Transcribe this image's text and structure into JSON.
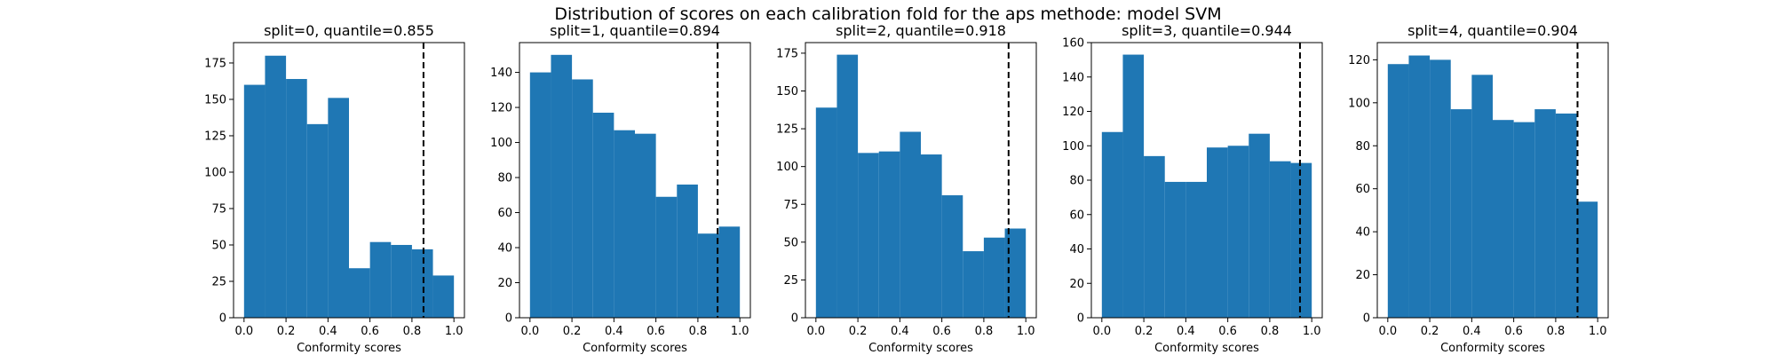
{
  "figure": {
    "suptitle": "Distribution of scores on each calibration fold for the aps methode: model SVM"
  },
  "bar_color": "#1f77b4",
  "quantile_line_color": "#000000",
  "chart_data": [
    {
      "type": "bar",
      "title": "split=0, quantile=0.855",
      "xlabel": "Conformity scores",
      "ylabel": "",
      "xlim": [
        -0.05,
        1.05
      ],
      "ylim": [
        0,
        189
      ],
      "xticks": [
        0.0,
        0.2,
        0.4,
        0.6,
        0.8,
        1.0
      ],
      "xtick_labels": [
        "0.0",
        "0.2",
        "0.4",
        "0.6",
        "0.8",
        "1.0"
      ],
      "yticks": [
        0,
        25,
        50,
        75,
        100,
        125,
        150,
        175
      ],
      "ytick_labels": [
        "0",
        "25",
        "50",
        "75",
        "100",
        "125",
        "150",
        "175"
      ],
      "bin_edges": [
        0.0,
        0.1,
        0.2,
        0.3,
        0.4,
        0.5,
        0.6,
        0.7,
        0.8,
        0.9,
        1.0
      ],
      "values": [
        160,
        180,
        164,
        133,
        151,
        34,
        52,
        50,
        47,
        29
      ],
      "quantile": 0.855,
      "grid": false
    },
    {
      "type": "bar",
      "title": "split=1, quantile=0.894",
      "xlabel": "Conformity scores",
      "ylabel": "",
      "xlim": [
        -0.05,
        1.05
      ],
      "ylim": [
        0,
        157
      ],
      "xticks": [
        0.0,
        0.2,
        0.4,
        0.6,
        0.8,
        1.0
      ],
      "xtick_labels": [
        "0.0",
        "0.2",
        "0.4",
        "0.6",
        "0.8",
        "1.0"
      ],
      "yticks": [
        0,
        20,
        40,
        60,
        80,
        100,
        120,
        140
      ],
      "ytick_labels": [
        "0",
        "20",
        "40",
        "60",
        "80",
        "100",
        "120",
        "140"
      ],
      "bin_edges": [
        0.0,
        0.1,
        0.2,
        0.3,
        0.4,
        0.5,
        0.6,
        0.7,
        0.8,
        0.9,
        1.0
      ],
      "values": [
        140,
        150,
        136,
        117,
        107,
        105,
        69,
        76,
        48,
        52
      ],
      "quantile": 0.894,
      "grid": false
    },
    {
      "type": "bar",
      "title": "split=2, quantile=0.918",
      "xlabel": "Conformity scores",
      "ylabel": "",
      "xlim": [
        -0.05,
        1.05
      ],
      "ylim": [
        0,
        182
      ],
      "xticks": [
        0.0,
        0.2,
        0.4,
        0.6,
        0.8,
        1.0
      ],
      "xtick_labels": [
        "0.0",
        "0.2",
        "0.4",
        "0.6",
        "0.8",
        "1.0"
      ],
      "yticks": [
        0,
        25,
        50,
        75,
        100,
        125,
        150,
        175
      ],
      "ytick_labels": [
        "0",
        "25",
        "50",
        "75",
        "100",
        "125",
        "150",
        "175"
      ],
      "bin_edges": [
        0.0,
        0.1,
        0.2,
        0.3,
        0.4,
        0.5,
        0.6,
        0.7,
        0.8,
        0.9,
        1.0
      ],
      "values": [
        139,
        174,
        109,
        110,
        123,
        108,
        81,
        44,
        53,
        59
      ],
      "quantile": 0.918,
      "grid": false
    },
    {
      "type": "bar",
      "title": "split=3, quantile=0.944",
      "xlabel": "Conformity scores",
      "ylabel": "",
      "xlim": [
        -0.05,
        1.05
      ],
      "ylim": [
        0,
        160
      ],
      "xticks": [
        0.0,
        0.2,
        0.4,
        0.6,
        0.8,
        1.0
      ],
      "xtick_labels": [
        "0.0",
        "0.2",
        "0.4",
        "0.6",
        "0.8",
        "1.0"
      ],
      "yticks": [
        0,
        20,
        40,
        60,
        80,
        100,
        120,
        140,
        160
      ],
      "ytick_labels": [
        "0",
        "20",
        "40",
        "60",
        "80",
        "100",
        "120",
        "140",
        "160"
      ],
      "bin_edges": [
        0.0,
        0.1,
        0.2,
        0.3,
        0.4,
        0.5,
        0.6,
        0.7,
        0.8,
        0.9,
        1.0
      ],
      "values": [
        108,
        153,
        94,
        79,
        79,
        99,
        100,
        107,
        91,
        90
      ],
      "quantile": 0.944,
      "grid": false
    },
    {
      "type": "bar",
      "title": "split=4, quantile=0.904",
      "xlabel": "Conformity scores",
      "ylabel": "",
      "xlim": [
        -0.05,
        1.05
      ],
      "ylim": [
        0,
        128
      ],
      "xticks": [
        0.0,
        0.2,
        0.4,
        0.6,
        0.8,
        1.0
      ],
      "xtick_labels": [
        "0.0",
        "0.2",
        "0.4",
        "0.6",
        "0.8",
        "1.0"
      ],
      "yticks": [
        0,
        20,
        40,
        60,
        80,
        100,
        120
      ],
      "ytick_labels": [
        "0",
        "20",
        "40",
        "60",
        "80",
        "100",
        "120"
      ],
      "bin_edges": [
        0.0,
        0.1,
        0.2,
        0.3,
        0.4,
        0.5,
        0.6,
        0.7,
        0.8,
        0.9,
        1.0
      ],
      "values": [
        118,
        122,
        120,
        97,
        113,
        92,
        91,
        97,
        95,
        54
      ],
      "quantile": 0.904,
      "grid": false
    }
  ]
}
